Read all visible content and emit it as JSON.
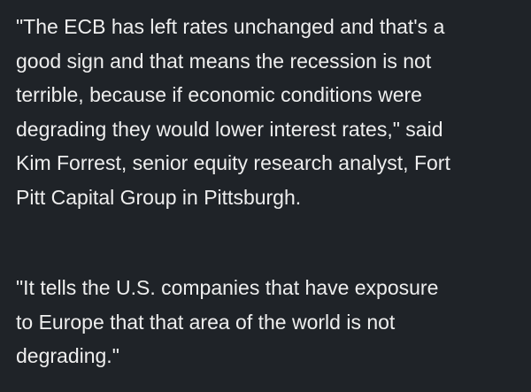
{
  "article": {
    "paragraphs": [
      {
        "lines": [
          "\"The ECB has left rates unchanged and that's a",
          "good sign and that means the recession is not",
          "terrible, because if economic conditions were",
          "degrading they would lower interest rates,\" said",
          "Kim Forrest, senior equity research analyst, Fort",
          "Pitt Capital Group in Pittsburgh."
        ]
      },
      {
        "lines": [
          "\"It tells the U.S. companies that have exposure",
          "to Europe that that area of the world is not",
          "degrading.\""
        ]
      }
    ]
  }
}
